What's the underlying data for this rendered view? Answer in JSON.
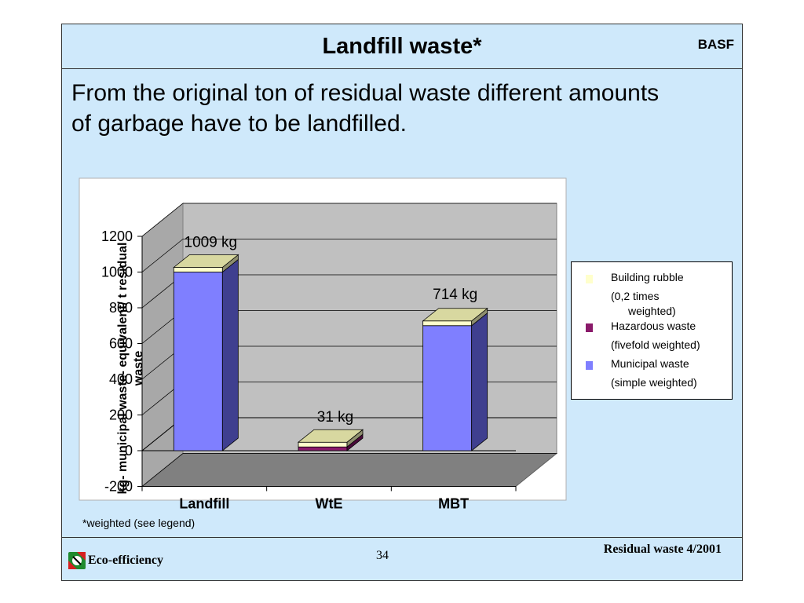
{
  "slide": {
    "title": "Landfill waste*",
    "brand": "BASF",
    "intro": "From the original ton of residual waste different amounts of garbage have to be landfilled.",
    "footnote": "*weighted (see legend)"
  },
  "footer": {
    "left_label": "Eco-efficiency",
    "page_number": "34",
    "right_label": "Residual waste 4/2001"
  },
  "colors": {
    "slide_bg": "#cfe9fb",
    "building_rubble": "#ffffcc",
    "hazardous_waste": "#8a1a6a",
    "municipal_waste": "#7f7fff"
  },
  "chart_data": {
    "type": "bar",
    "stacked": true,
    "three_d": true,
    "categories": [
      "Landfill",
      "WtE",
      "MBT"
    ],
    "series": [
      {
        "name": "Municipal waste",
        "legend_lines": [
          "Municipal waste",
          "(simple weighted)"
        ],
        "values": [
          1000,
          0,
          700
        ]
      },
      {
        "name": "Hazardous waste",
        "legend_lines": [
          "Hazardous waste",
          "(fivefold weighted)"
        ],
        "values": [
          0,
          21,
          0
        ]
      },
      {
        "name": "Building rubble",
        "legend_lines": [
          "Building rubble",
          "(0,2 times",
          "weighted)"
        ],
        "values": [
          9,
          10,
          14
        ]
      }
    ],
    "totals_labels": [
      "1009 kg",
      "31 kg",
      "714 kg"
    ],
    "ylabel": "kg- municipal waste- equivalent/ t residual waste",
    "ylim": [
      -200,
      1200
    ],
    "yticks": [
      -200,
      0,
      200,
      400,
      600,
      800,
      1000,
      1200
    ],
    "legend_position": "right",
    "grid": true
  }
}
